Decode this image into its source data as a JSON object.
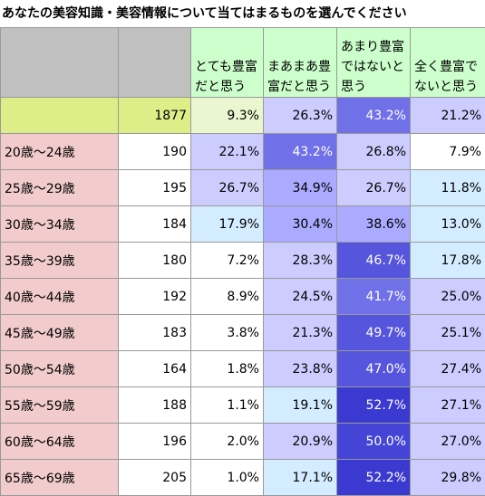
{
  "title": "あなたの美容知識・美容情報について当てはまるものを選んでください",
  "table": {
    "header": [
      "",
      "",
      "とても豊富だと思う",
      "まあまあ豊富だと思う",
      "あまり豊富ではないと思う",
      "全く豊富でないと思う"
    ],
    "rows": [
      [
        "",
        "1877",
        "9.3%",
        "26.3%",
        "43.2%",
        "21.2%"
      ],
      [
        "20歳～24歳",
        "190",
        "22.1%",
        "43.2%",
        "26.8%",
        "7.9%"
      ],
      [
        "25歳～29歳",
        "195",
        "26.7%",
        "34.9%",
        "26.7%",
        "11.8%"
      ],
      [
        "30歳～34歳",
        "184",
        "17.9%",
        "30.4%",
        "38.6%",
        "13.0%"
      ],
      [
        "35歳～39歳",
        "180",
        "7.2%",
        "28.3%",
        "46.7%",
        "17.8%"
      ],
      [
        "40歳～44歳",
        "192",
        "8.9%",
        "24.5%",
        "41.7%",
        "25.0%"
      ],
      [
        "45歳～49歳",
        "183",
        "3.8%",
        "21.3%",
        "49.7%",
        "25.1%"
      ],
      [
        "50歳～54歳",
        "164",
        "1.8%",
        "23.8%",
        "47.0%",
        "27.4%"
      ],
      [
        "55歳～59歳",
        "188",
        "1.1%",
        "19.1%",
        "52.7%",
        "27.1%"
      ],
      [
        "60歳～64歳",
        "196",
        "2.0%",
        "20.9%",
        "50.0%",
        "27.0%"
      ],
      [
        "65歳～69歳",
        "205",
        "1.0%",
        "17.1%",
        "52.2%",
        "29.8%"
      ]
    ],
    "header_colors": [
      "#c0c0c0",
      "#c0c0c0",
      "#ccffcc",
      "#ccffcc",
      "#ccffcc",
      "#ccffcc"
    ],
    "cell_colors": [
      [
        "#ddee88",
        "#ddee88",
        "#eaf6d0",
        "#ccccff",
        "#7070e8",
        "#ccccff"
      ],
      [
        "#f2cccc",
        "#ffffff",
        "#ccccff",
        "#7070e8",
        "#ccccff",
        "#ffffff"
      ],
      [
        "#f2cccc",
        "#ffffff",
        "#ccccff",
        "#aaaaff",
        "#ccccff",
        "#d4ecff"
      ],
      [
        "#f2cccc",
        "#ffffff",
        "#d4ecff",
        "#aaaaff",
        "#aaaaff",
        "#d4ecff"
      ],
      [
        "#f2cccc",
        "#ffffff",
        "#ffffff",
        "#ccccff",
        "#5555dd",
        "#d4ecff"
      ],
      [
        "#f2cccc",
        "#ffffff",
        "#ffffff",
        "#ccccff",
        "#7070e8",
        "#ccccff"
      ],
      [
        "#f2cccc",
        "#ffffff",
        "#ffffff",
        "#ccccff",
        "#5555dd",
        "#ccccff"
      ],
      [
        "#f2cccc",
        "#ffffff",
        "#ffffff",
        "#ccccff",
        "#5555dd",
        "#ccccff"
      ],
      [
        "#f2cccc",
        "#ffffff",
        "#ffffff",
        "#d4ecff",
        "#3a3ad0",
        "#ccccff"
      ],
      [
        "#f2cccc",
        "#ffffff",
        "#ffffff",
        "#ccccff",
        "#4444d6",
        "#ccccff"
      ],
      [
        "#f2cccc",
        "#ffffff",
        "#ffffff",
        "#d4ecff",
        "#3a3ad0",
        "#ccccff"
      ]
    ]
  }
}
